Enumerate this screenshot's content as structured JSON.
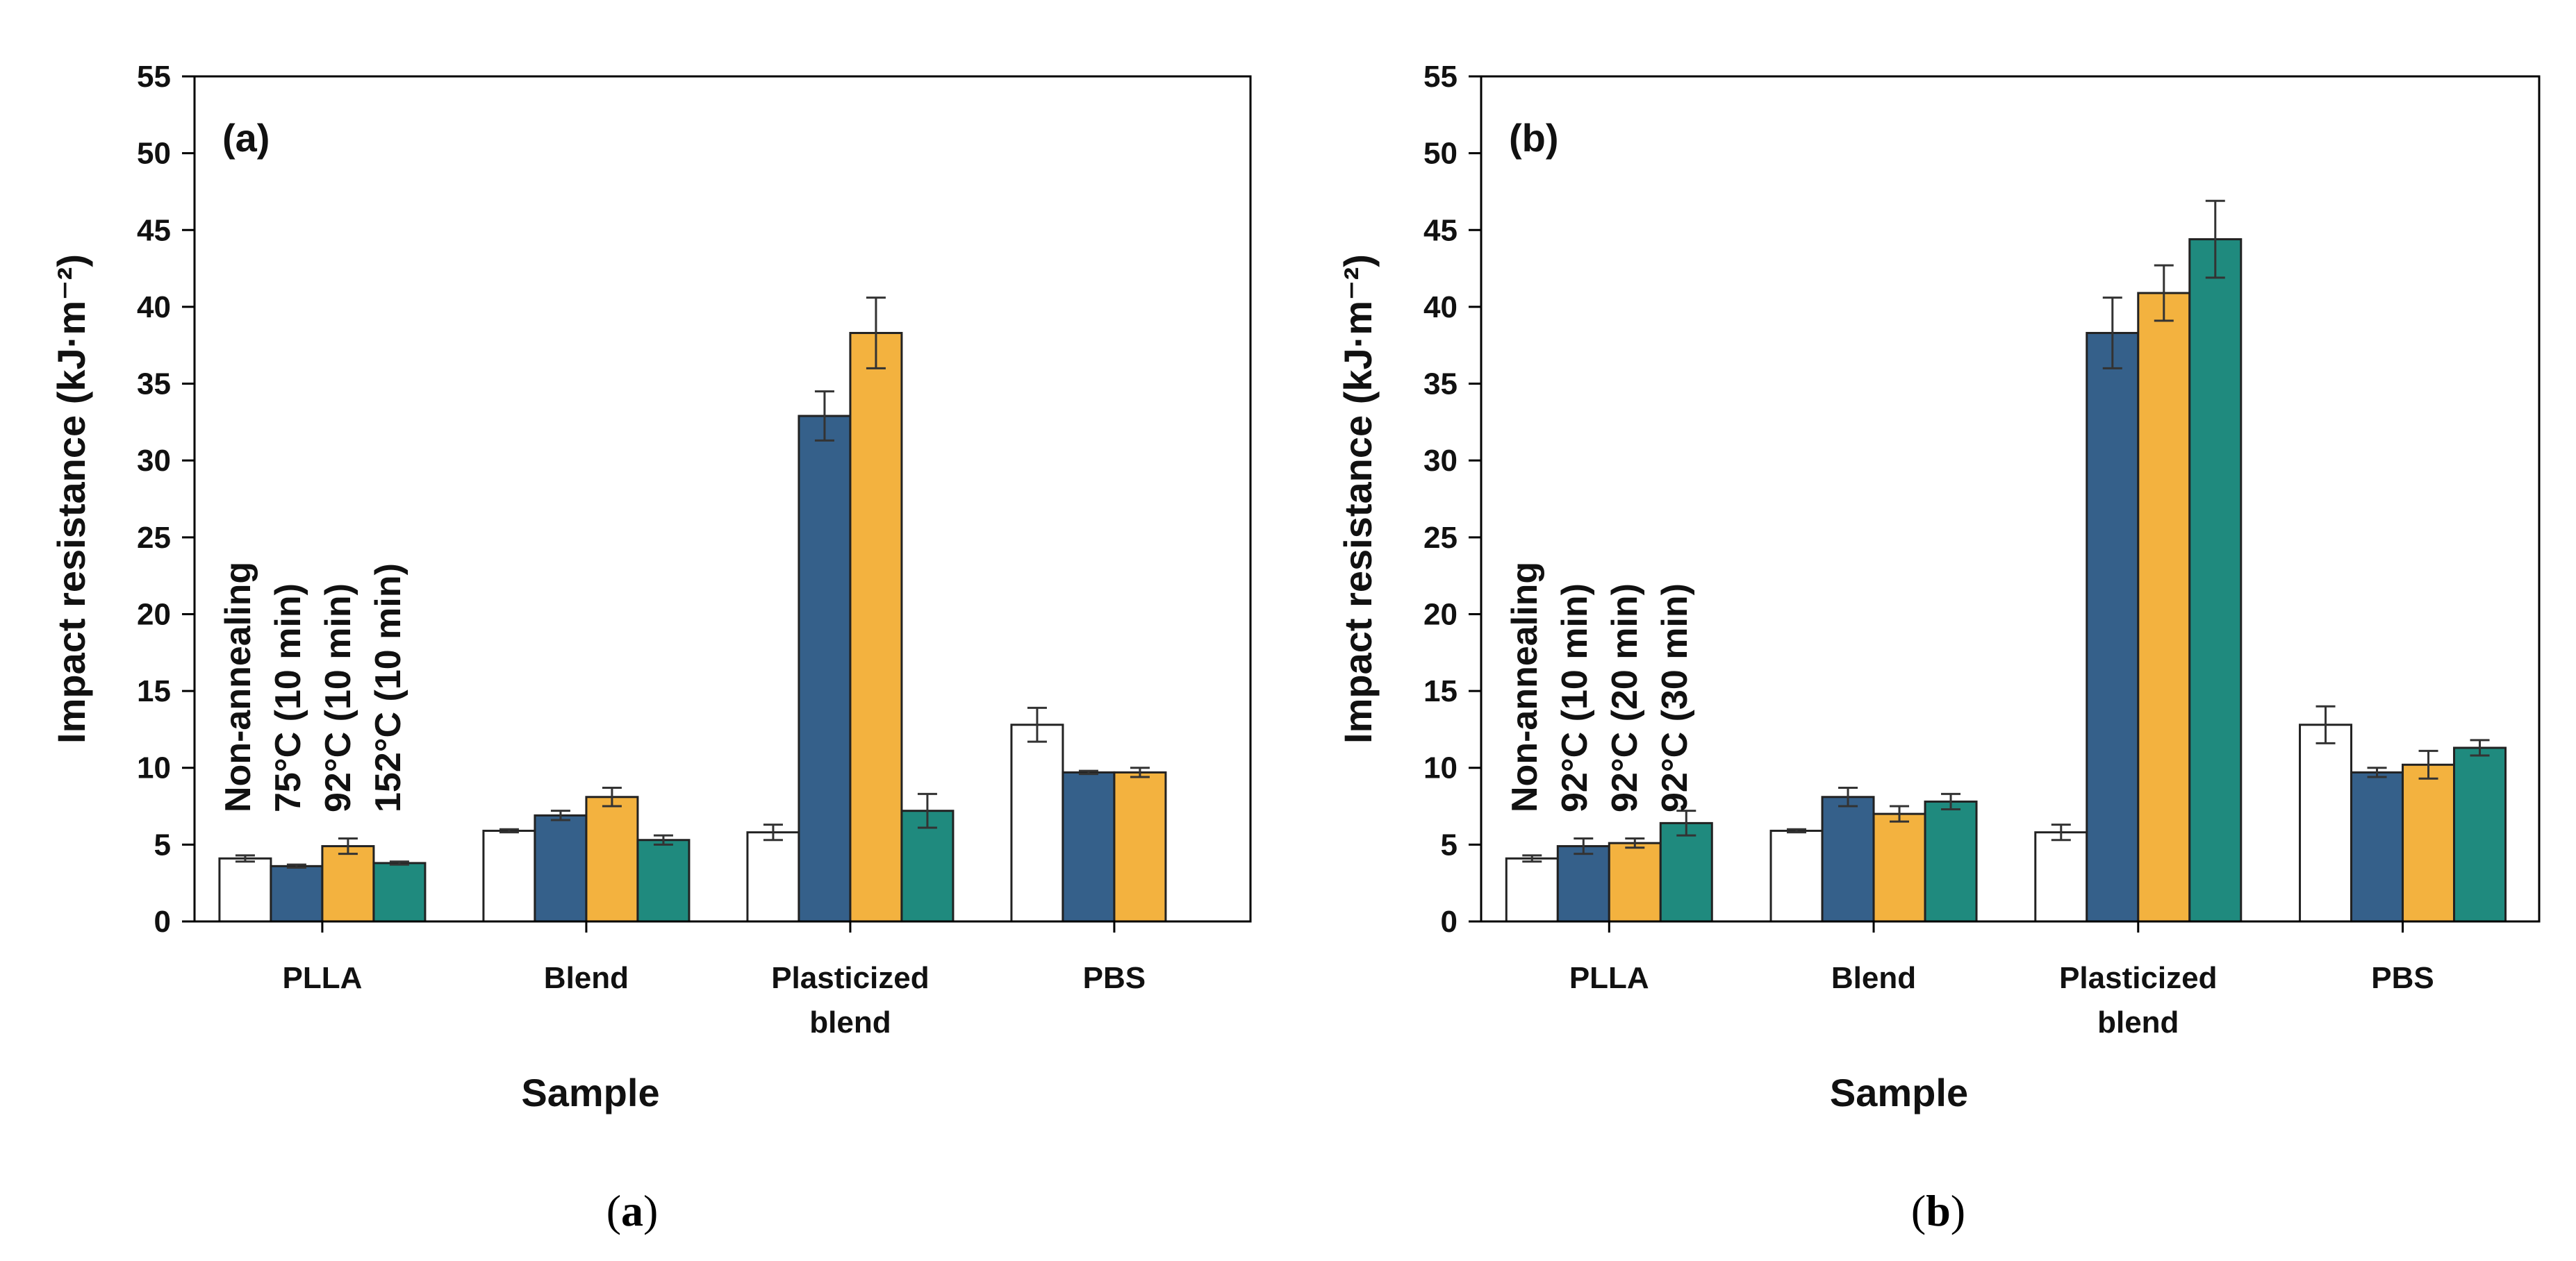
{
  "chart_data": [
    {
      "type": "bar",
      "panel_label": "(a)",
      "caption": "a",
      "xlabel": "Sample",
      "ylabel": "Impact resistance (kJ·m⁻²)",
      "ylim": [
        0,
        55
      ],
      "yticks": [
        0,
        5,
        10,
        15,
        20,
        25,
        30,
        35,
        40,
        45,
        50,
        55
      ],
      "categories": [
        "PLLA",
        "Blend",
        "Plasticized\nblend",
        "PBS"
      ],
      "series": [
        {
          "name": "Non-annealing",
          "color": "#ffffff",
          "values": [
            4.1,
            5.9,
            5.8,
            12.8
          ],
          "errors": [
            0.2,
            0.1,
            0.5,
            1.1
          ]
        },
        {
          "name": "75°C  (10 min)",
          "color": "#35608a",
          "values": [
            3.6,
            6.9,
            32.9,
            9.7
          ],
          "errors": [
            0.1,
            0.3,
            1.6,
            0.1
          ]
        },
        {
          "name": "92°C  (10 min)",
          "color": "#f3b23f",
          "values": [
            4.9,
            8.1,
            38.3,
            9.7
          ],
          "errors": [
            0.5,
            0.6,
            2.3,
            0.3
          ]
        },
        {
          "name": "152°C (10 min)",
          "color": "#1f8a7e",
          "values": [
            3.8,
            5.3,
            7.2,
            null
          ],
          "errors": [
            0.1,
            0.3,
            1.1,
            null
          ]
        }
      ]
    },
    {
      "type": "bar",
      "panel_label": "(b)",
      "caption": "b",
      "xlabel": "Sample",
      "ylabel": "Impact resistance (kJ·m⁻²)",
      "ylim": [
        0,
        55
      ],
      "yticks": [
        0,
        5,
        10,
        15,
        20,
        25,
        30,
        35,
        40,
        45,
        50,
        55
      ],
      "categories": [
        "PLLA",
        "Blend",
        "Plasticized\nblend",
        "PBS"
      ],
      "series": [
        {
          "name": "Non-annealing",
          "color": "#ffffff",
          "values": [
            4.1,
            5.9,
            5.8,
            12.8
          ],
          "errors": [
            0.2,
            0.1,
            0.5,
            1.2
          ]
        },
        {
          "name": "92°C  (10 min)",
          "color": "#35608a",
          "values": [
            4.9,
            8.1,
            38.3,
            9.7
          ],
          "errors": [
            0.5,
            0.6,
            2.3,
            0.3
          ]
        },
        {
          "name": "92°C  (20 min)",
          "color": "#f3b23f",
          "values": [
            5.1,
            7.0,
            40.9,
            10.2
          ],
          "errors": [
            0.3,
            0.5,
            1.8,
            0.9
          ]
        },
        {
          "name": "92°C  (30 min)",
          "color": "#1f8a7e",
          "values": [
            6.4,
            7.8,
            44.4,
            11.3
          ],
          "errors": [
            0.8,
            0.5,
            2.5,
            0.5
          ]
        }
      ]
    }
  ]
}
